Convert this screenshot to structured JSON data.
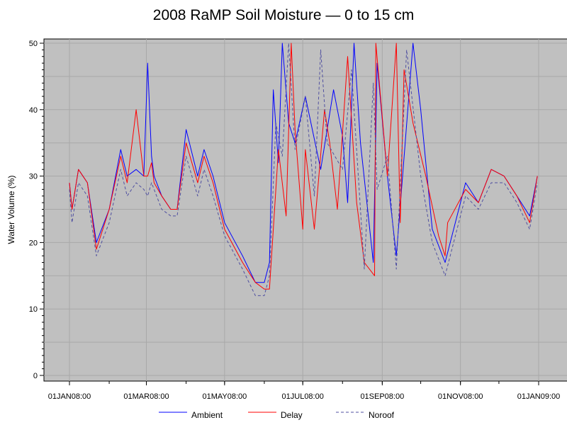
{
  "chart_data": {
    "type": "line",
    "title": "2008 RaMP Soil Moisture — 0 to 15 cm",
    "xlabel": "",
    "ylabel": "Water Volume (%)",
    "ylim": [
      0,
      50
    ],
    "yticks": [
      0,
      10,
      20,
      30,
      40,
      50
    ],
    "xlim": [
      "2008-01-01",
      "2009-01-01"
    ],
    "xticks": [
      "01JAN08:00",
      "01MAR08:00",
      "01MAY08:00",
      "01JUL08:00",
      "01SEP08:00",
      "01NOV08:00",
      "01JAN09:00"
    ],
    "xtick_dates": [
      "2008-01-01",
      "2008-03-01",
      "2008-05-01",
      "2008-07-01",
      "2008-09-01",
      "2008-11-01",
      "2009-01-01"
    ],
    "grid": true,
    "background": "#c0c0c0",
    "legend_position": "bottom",
    "series": [
      {
        "name": "Ambient",
        "color": "#0000ff",
        "style": "solid",
        "x": [
          "2008-01-01",
          "2008-01-03",
          "2008-01-08",
          "2008-01-15",
          "2008-01-22",
          "2008-02-01",
          "2008-02-10",
          "2008-02-15",
          "2008-02-22",
          "2008-02-28",
          "2008-03-02",
          "2008-03-05",
          "2008-03-07",
          "2008-03-13",
          "2008-03-20",
          "2008-03-25",
          "2008-04-01",
          "2008-04-10",
          "2008-04-15",
          "2008-04-22",
          "2008-05-01",
          "2008-05-15",
          "2008-05-25",
          "2008-06-01",
          "2008-06-05",
          "2008-06-08",
          "2008-06-12",
          "2008-06-15",
          "2008-06-20",
          "2008-06-25",
          "2008-07-03",
          "2008-07-15",
          "2008-07-25",
          "2008-08-01",
          "2008-08-05",
          "2008-08-10",
          "2008-08-15",
          "2008-08-25",
          "2008-08-28",
          "2008-09-05",
          "2008-09-12",
          "2008-09-25",
          "2008-10-01",
          "2008-10-06",
          "2008-10-10",
          "2008-10-20",
          "2008-11-05",
          "2008-11-15",
          "2008-11-25",
          "2008-12-05",
          "2008-12-15",
          "2008-12-25",
          "2008-12-31"
        ],
        "y": [
          29,
          25,
          31,
          29,
          20,
          25,
          34,
          30,
          31,
          30,
          47,
          33,
          30,
          27,
          25,
          25,
          37,
          30,
          34,
          30,
          23,
          18,
          14,
          14,
          17,
          43,
          32,
          50,
          38,
          35,
          42,
          31,
          43,
          36,
          26,
          50,
          35,
          17,
          47,
          30,
          18,
          50,
          40,
          30,
          22,
          17,
          29,
          26,
          31,
          30,
          27,
          24,
          30
        ]
      },
      {
        "name": "Delay",
        "color": "#ff0000",
        "style": "solid",
        "x": [
          "2008-01-01",
          "2008-01-03",
          "2008-01-08",
          "2008-01-15",
          "2008-01-22",
          "2008-02-01",
          "2008-02-10",
          "2008-02-15",
          "2008-02-22",
          "2008-02-28",
          "2008-03-02",
          "2008-03-05",
          "2008-03-07",
          "2008-03-13",
          "2008-03-20",
          "2008-03-25",
          "2008-04-01",
          "2008-04-10",
          "2008-04-15",
          "2008-04-22",
          "2008-05-01",
          "2008-05-15",
          "2008-05-25",
          "2008-06-01",
          "2008-06-05",
          "2008-06-12",
          "2008-06-18",
          "2008-06-22",
          "2008-06-25",
          "2008-07-01",
          "2008-07-03",
          "2008-07-10",
          "2008-07-18",
          "2008-07-22",
          "2008-07-28",
          "2008-08-05",
          "2008-08-12",
          "2008-08-18",
          "2008-08-26",
          "2008-08-27",
          "2008-09-05",
          "2008-09-12",
          "2008-09-15",
          "2008-09-18",
          "2008-09-25",
          "2008-10-05",
          "2008-10-15",
          "2008-10-20",
          "2008-10-22",
          "2008-11-05",
          "2008-11-15",
          "2008-11-25",
          "2008-12-05",
          "2008-12-15",
          "2008-12-25",
          "2008-12-31"
        ],
        "y": [
          29,
          25,
          31,
          29,
          19,
          25,
          33,
          29,
          40,
          30,
          30,
          32,
          29,
          27,
          25,
          25,
          35,
          29,
          33,
          29,
          22,
          17,
          14,
          13,
          13,
          34,
          24,
          50,
          37,
          22,
          34,
          22,
          40,
          35,
          25,
          48,
          26,
          17,
          15,
          50,
          30,
          50,
          23,
          46,
          38,
          30,
          21,
          18,
          23,
          28,
          26,
          31,
          30,
          27,
          23,
          30
        ]
      },
      {
        "name": "Noroof",
        "color": "#5050a0",
        "style": "dashed",
        "x": [
          "2008-01-01",
          "2008-01-03",
          "2008-01-08",
          "2008-01-15",
          "2008-01-22",
          "2008-02-01",
          "2008-02-10",
          "2008-02-15",
          "2008-02-22",
          "2008-02-28",
          "2008-03-02",
          "2008-03-05",
          "2008-03-07",
          "2008-03-13",
          "2008-03-20",
          "2008-03-25",
          "2008-04-01",
          "2008-04-10",
          "2008-04-15",
          "2008-04-22",
          "2008-05-01",
          "2008-05-15",
          "2008-05-25",
          "2008-06-01",
          "2008-06-05",
          "2008-06-10",
          "2008-06-15",
          "2008-06-20",
          "2008-06-25",
          "2008-07-03",
          "2008-07-10",
          "2008-07-15",
          "2008-07-20",
          "2008-08-01",
          "2008-08-08",
          "2008-08-18",
          "2008-08-25",
          "2008-08-28",
          "2008-09-05",
          "2008-09-12",
          "2008-09-20",
          "2008-10-01",
          "2008-10-10",
          "2008-10-20",
          "2008-11-05",
          "2008-11-15",
          "2008-11-25",
          "2008-12-05",
          "2008-12-15",
          "2008-12-25",
          "2008-12-31"
        ],
        "y": [
          28,
          23,
          29,
          27,
          18,
          23,
          31,
          27,
          29,
          28,
          27,
          29,
          28,
          25,
          24,
          24,
          33,
          27,
          31,
          27,
          21,
          16,
          12,
          12,
          15,
          38,
          33,
          50,
          34,
          42,
          27,
          49,
          35,
          31,
          46,
          16,
          44,
          28,
          33,
          16,
          49,
          30,
          20,
          15,
          27,
          25,
          29,
          29,
          26,
          22,
          29
        ]
      }
    ]
  }
}
